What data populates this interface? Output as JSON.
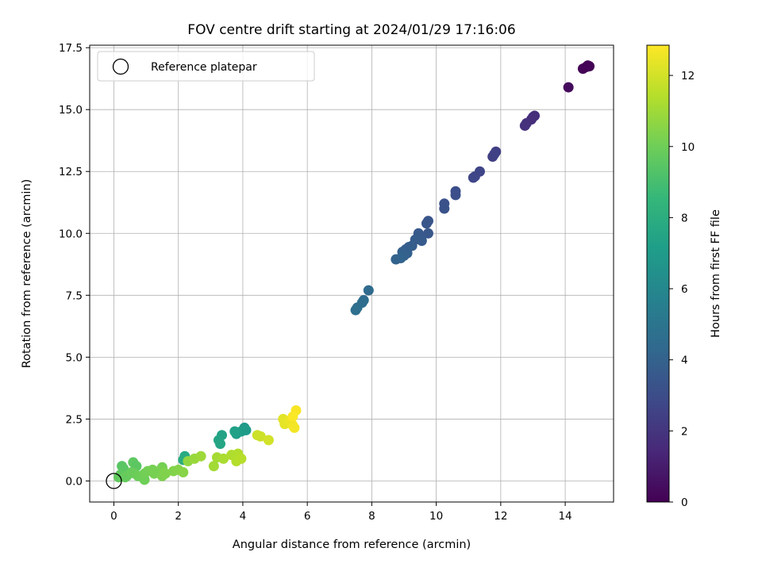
{
  "chart_data": {
    "type": "scatter",
    "title": "FOV centre drift starting at 2024/01/29 17:16:06",
    "xlabel": "Angular distance from reference (arcmin)",
    "ylabel": "Rotation from reference (arcmin)",
    "xlim": [
      -0.75,
      15.5
    ],
    "ylim": [
      -0.85,
      17.6
    ],
    "xticks": [
      0,
      2,
      4,
      6,
      8,
      10,
      12,
      14
    ],
    "yticks": [
      0.0,
      2.5,
      5.0,
      7.5,
      10.0,
      12.5,
      15.0,
      17.5
    ],
    "grid": true,
    "legend": {
      "label": "Reference platepar",
      "placement": "top-left"
    },
    "reference_point": [
      0,
      0
    ],
    "colorbar": {
      "label": "Hours from first FF file",
      "colormap": "viridis",
      "range": [
        0,
        12.85
      ],
      "ticks": [
        0,
        2,
        4,
        6,
        8,
        10,
        12
      ]
    },
    "points": [
      [
        14.75,
        16.75,
        0.0
      ],
      [
        14.65,
        16.72,
        0.05
      ],
      [
        14.55,
        16.65,
        0.1
      ],
      [
        14.7,
        16.78,
        0.08
      ],
      [
        14.1,
        15.9,
        0.35
      ],
      [
        13.05,
        14.75,
        1.6
      ],
      [
        12.95,
        14.6,
        1.65
      ],
      [
        13.0,
        14.7,
        1.7
      ],
      [
        12.8,
        14.45,
        1.75
      ],
      [
        12.75,
        14.35,
        1.8
      ],
      [
        11.85,
        13.3,
        2.4
      ],
      [
        11.75,
        13.1,
        2.45
      ],
      [
        11.8,
        13.2,
        2.5
      ],
      [
        11.35,
        12.5,
        2.65
      ],
      [
        11.2,
        12.3,
        2.7
      ],
      [
        11.15,
        12.25,
        2.75
      ],
      [
        10.6,
        11.7,
        3.05
      ],
      [
        10.6,
        11.55,
        3.1
      ],
      [
        10.25,
        11.2,
        3.2
      ],
      [
        10.25,
        11.0,
        3.25
      ],
      [
        9.75,
        10.5,
        3.4
      ],
      [
        9.7,
        10.4,
        3.45
      ],
      [
        9.75,
        10.0,
        3.5
      ],
      [
        9.45,
        10.0,
        3.55
      ],
      [
        9.5,
        9.85,
        3.6
      ],
      [
        9.55,
        9.7,
        3.65
      ],
      [
        9.35,
        9.75,
        3.7
      ],
      [
        9.25,
        9.5,
        3.75
      ],
      [
        9.15,
        9.45,
        3.8
      ],
      [
        9.05,
        9.35,
        3.85
      ],
      [
        9.1,
        9.2,
        3.9
      ],
      [
        8.95,
        9.25,
        3.95
      ],
      [
        9.0,
        9.1,
        4.0
      ],
      [
        8.75,
        8.95,
        4.05
      ],
      [
        8.9,
        9.0,
        4.1
      ],
      [
        7.9,
        7.7,
        4.45
      ],
      [
        7.75,
        7.3,
        4.55
      ],
      [
        7.7,
        7.2,
        4.6
      ],
      [
        7.55,
        7.0,
        4.65
      ],
      [
        7.5,
        6.9,
        4.7
      ],
      [
        4.05,
        2.15,
        6.9
      ],
      [
        4.1,
        2.05,
        7.0
      ],
      [
        3.95,
        2.0,
        7.1
      ],
      [
        3.8,
        1.9,
        7.2
      ],
      [
        3.75,
        2.0,
        7.3
      ],
      [
        3.35,
        1.85,
        7.4
      ],
      [
        3.25,
        1.65,
        7.5
      ],
      [
        3.3,
        1.5,
        7.55
      ],
      [
        2.2,
        1.0,
        7.8
      ],
      [
        2.15,
        0.85,
        7.9
      ],
      [
        0.6,
        0.75,
        9.6
      ],
      [
        0.7,
        0.6,
        9.55
      ],
      [
        0.25,
        0.6,
        9.45
      ],
      [
        0.3,
        0.5,
        9.5
      ],
      [
        0.2,
        0.25,
        9.65
      ],
      [
        0.15,
        0.15,
        9.7
      ],
      [
        0.35,
        0.15,
        9.75
      ],
      [
        0.4,
        0.2,
        9.8
      ],
      [
        0.55,
        0.35,
        9.85
      ],
      [
        0.65,
        0.3,
        9.9
      ],
      [
        0.75,
        0.2,
        9.95
      ],
      [
        0.95,
        0.05,
        10.0
      ],
      [
        0.95,
        0.3,
        10.05
      ],
      [
        1.05,
        0.4,
        10.1
      ],
      [
        1.2,
        0.45,
        10.15
      ],
      [
        1.25,
        0.3,
        10.2
      ],
      [
        1.5,
        0.55,
        10.1
      ],
      [
        1.45,
        0.45,
        10.2
      ],
      [
        1.55,
        0.35,
        10.25
      ],
      [
        1.5,
        0.2,
        10.3
      ],
      [
        1.6,
        0.3,
        10.35
      ],
      [
        1.85,
        0.4,
        10.4
      ],
      [
        2.0,
        0.45,
        10.45
      ],
      [
        2.15,
        0.35,
        10.5
      ],
      [
        2.3,
        0.8,
        10.7
      ],
      [
        2.5,
        0.9,
        10.85
      ],
      [
        2.7,
        1.0,
        10.95
      ],
      [
        3.1,
        0.6,
        11.05
      ],
      [
        3.2,
        0.95,
        11.1
      ],
      [
        3.4,
        0.9,
        11.2
      ],
      [
        3.65,
        1.05,
        11.3
      ],
      [
        3.85,
        1.1,
        11.35
      ],
      [
        3.8,
        0.8,
        11.4
      ],
      [
        3.95,
        0.9,
        11.45
      ],
      [
        4.45,
        1.85,
        11.85
      ],
      [
        4.55,
        1.8,
        11.9
      ],
      [
        4.8,
        1.65,
        12.0
      ],
      [
        5.25,
        2.5,
        12.3
      ],
      [
        5.3,
        2.3,
        12.4
      ],
      [
        5.45,
        2.45,
        12.5
      ],
      [
        5.55,
        2.25,
        12.55
      ],
      [
        5.6,
        2.15,
        12.65
      ],
      [
        5.65,
        2.85,
        12.75
      ],
      [
        5.55,
        2.6,
        12.8
      ]
    ]
  }
}
